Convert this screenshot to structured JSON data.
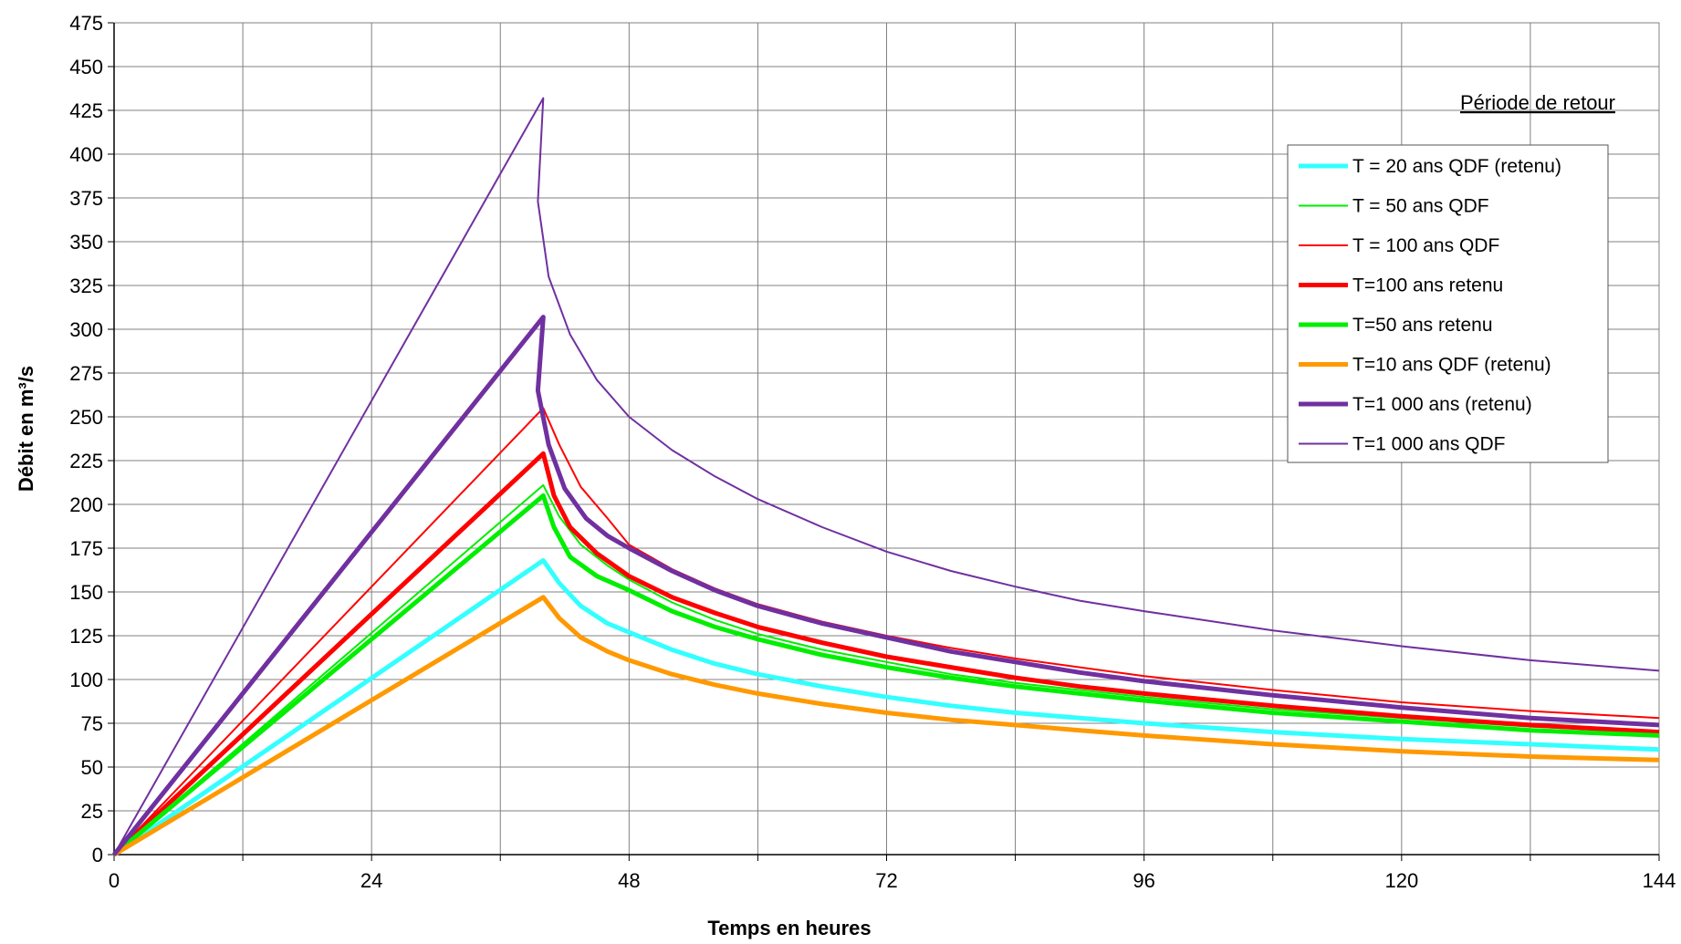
{
  "chart_data": {
    "type": "line",
    "xlabel": "Temps en heures",
    "ylabel": "Débit en m³/s",
    "xlim": [
      0,
      144
    ],
    "ylim": [
      0,
      475
    ],
    "x_ticks": [
      0,
      24,
      48,
      72,
      96,
      120,
      144
    ],
    "x_grid_step": 12,
    "y_ticks": [
      0,
      25,
      50,
      75,
      100,
      125,
      150,
      175,
      200,
      225,
      250,
      275,
      300,
      325,
      350,
      375,
      400,
      425,
      450,
      475
    ],
    "grid": true,
    "legend": {
      "title": "Période de retour",
      "placement": "right"
    },
    "series": [
      {
        "name": "T = 20 ans QDF (retenu)",
        "color": "#33ffff",
        "width": "thick",
        "x": [
          0,
          40,
          41.5,
          43.5,
          46,
          48,
          52,
          56,
          60,
          66,
          72,
          78,
          84,
          90,
          96,
          108,
          120,
          132,
          144
        ],
        "y": [
          0,
          168,
          155,
          142,
          132,
          127,
          117,
          109,
          103,
          96,
          90,
          85,
          81,
          78,
          75,
          70,
          66,
          63,
          60
        ]
      },
      {
        "name": "T = 50 ans QDF",
        "color": "#00ee00",
        "width": "thin",
        "x": [
          0,
          40,
          41.5,
          43.5,
          46,
          48,
          52,
          56,
          60,
          66,
          72,
          78,
          84,
          90,
          96,
          108,
          120,
          132,
          144
        ],
        "y": [
          0,
          211,
          193,
          177,
          165,
          157,
          144,
          134,
          126,
          117,
          110,
          103,
          98,
          94,
          90,
          83,
          78,
          73,
          70
        ]
      },
      {
        "name": "T = 100 ans QDF",
        "color": "#ff0000",
        "width": "thin",
        "x": [
          0,
          40,
          41.5,
          43.5,
          46,
          48,
          52,
          56,
          60,
          66,
          72,
          78,
          84,
          90,
          96,
          108,
          120,
          132,
          144
        ],
        "y": [
          0,
          255,
          234,
          210,
          192,
          177,
          163,
          152,
          143,
          133,
          125,
          118,
          112,
          107,
          102,
          94,
          87,
          82,
          78
        ]
      },
      {
        "name": "T=100 ans retenu",
        "color": "#ff0000",
        "width": "thick",
        "x": [
          0,
          40,
          41,
          42.5,
          45,
          48,
          52,
          56,
          60,
          66,
          72,
          78,
          84,
          90,
          96,
          108,
          120,
          132,
          144
        ],
        "y": [
          0,
          229,
          205,
          187,
          172,
          159,
          147,
          138,
          130,
          121,
          113,
          107,
          101,
          96,
          92,
          85,
          79,
          74,
          70
        ]
      },
      {
        "name": "T=50 ans retenu",
        "color": "#00ee00",
        "width": "thick",
        "x": [
          0,
          40,
          41,
          42.5,
          45,
          48,
          52,
          56,
          60,
          66,
          72,
          78,
          84,
          90,
          96,
          108,
          120,
          132,
          144
        ],
        "y": [
          0,
          205,
          187,
          170,
          159,
          151,
          139,
          130,
          123,
          114,
          107,
          101,
          96,
          92,
          88,
          81,
          76,
          71,
          68
        ]
      },
      {
        "name": "T=10 ans QDF (retenu)",
        "color": "#ff9900",
        "width": "thick",
        "x": [
          0,
          40,
          41.5,
          43.5,
          46,
          48,
          52,
          56,
          60,
          66,
          72,
          78,
          84,
          90,
          96,
          108,
          120,
          132,
          144
        ],
        "y": [
          0,
          147,
          135,
          124,
          116,
          111,
          103,
          97,
          92,
          86,
          81,
          77,
          74,
          71,
          68,
          63,
          59,
          56,
          54
        ]
      },
      {
        "name": "T=1 000 ans (retenu)",
        "color": "#7030a0",
        "width": "thick",
        "x": [
          0,
          40,
          39.5,
          40.5,
          42,
          44,
          46,
          48,
          52,
          56,
          60,
          66,
          72,
          78,
          84,
          90,
          96,
          108,
          120,
          132,
          144
        ],
        "y": [
          0,
          307,
          265,
          234,
          209,
          192,
          182,
          175,
          162,
          151,
          142,
          132,
          124,
          116,
          110,
          104,
          99,
          91,
          84,
          78,
          74
        ]
      },
      {
        "name": "T=1 000 ans QDF",
        "color": "#7030a0",
        "width": "thin",
        "x": [
          0,
          40,
          39.5,
          40.5,
          42.5,
          45,
          48,
          52,
          56,
          60,
          66,
          72,
          78,
          84,
          90,
          96,
          108,
          120,
          132,
          144
        ],
        "y": [
          0,
          432,
          373,
          330,
          297,
          271,
          250,
          231,
          216,
          203,
          187,
          173,
          162,
          153,
          145,
          139,
          128,
          119,
          111,
          105
        ]
      }
    ]
  }
}
